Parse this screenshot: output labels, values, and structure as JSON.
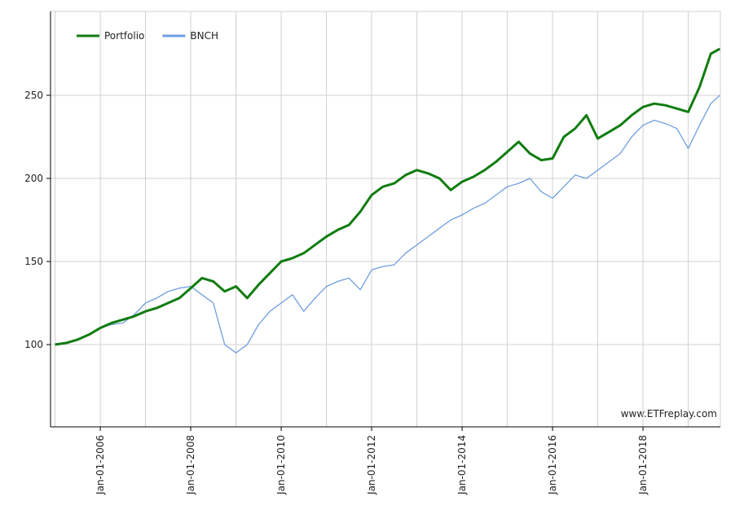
{
  "chart_data": {
    "type": "line",
    "x": [
      2005,
      2005.25,
      2005.5,
      2005.75,
      2006,
      2006.25,
      2006.5,
      2006.75,
      2007,
      2007.25,
      2007.5,
      2007.75,
      2008,
      2008.25,
      2008.5,
      2008.75,
      2009,
      2009.25,
      2009.5,
      2009.75,
      2010,
      2010.25,
      2010.5,
      2010.75,
      2011,
      2011.25,
      2011.5,
      2011.75,
      2012,
      2012.25,
      2012.5,
      2012.75,
      2013,
      2013.25,
      2013.5,
      2013.75,
      2014,
      2014.25,
      2014.5,
      2014.75,
      2015,
      2015.25,
      2015.5,
      2015.75,
      2016,
      2016.25,
      2016.5,
      2016.75,
      2017,
      2017.25,
      2017.5,
      2017.75,
      2018,
      2018.25,
      2018.5,
      2018.75,
      2019,
      2019.25,
      2019.5,
      2019.7
    ],
    "series": [
      {
        "name": "Portfolio",
        "color": "#107c10",
        "width": 3,
        "values": [
          100,
          101,
          103,
          106,
          110,
          113,
          115,
          117,
          120,
          122,
          125,
          128,
          134,
          140,
          138,
          132,
          135,
          128,
          136,
          143,
          150,
          152,
          155,
          160,
          165,
          169,
          172,
          180,
          190,
          195,
          197,
          202,
          205,
          203,
          200,
          193,
          198,
          201,
          205,
          210,
          216,
          222,
          215,
          211,
          212,
          225,
          230,
          238,
          224,
          228,
          232,
          238,
          243,
          245,
          244,
          242,
          240,
          255,
          275,
          278
        ]
      },
      {
        "name": "BNCH",
        "color": "#6f9ee0",
        "width": 1.3,
        "values": [
          100,
          101,
          103,
          106,
          110,
          112,
          113,
          118,
          125,
          128,
          132,
          134,
          135,
          130,
          125,
          100,
          95,
          100,
          112,
          120,
          125,
          130,
          120,
          128,
          135,
          138,
          140,
          133,
          145,
          147,
          148,
          155,
          160,
          165,
          170,
          175,
          178,
          182,
          185,
          190,
          195,
          197,
          200,
          192,
          188,
          195,
          202,
          200,
          205,
          210,
          215,
          225,
          232,
          235,
          233,
          230,
          218,
          232,
          245,
          250
        ]
      }
    ],
    "xlim": [
      2004.9,
      2019.71
    ],
    "xticks": [
      {
        "value": 2006,
        "label": "Jan-01-2006"
      },
      {
        "value": 2008,
        "label": "Jan-01-2008"
      },
      {
        "value": 2010,
        "label": "Jan-01-2010"
      },
      {
        "value": 2012,
        "label": "Jan-01-2012"
      },
      {
        "value": 2014,
        "label": "Jan-01-2014"
      },
      {
        "value": 2016,
        "label": "Jan-01-2016"
      },
      {
        "value": 2018,
        "label": "Jan-01-2018"
      }
    ],
    "x_minor_ticks": [
      2005,
      2007,
      2009,
      2011,
      2013,
      2015,
      2017,
      2019
    ],
    "ylim": [
      50.5,
      300.5
    ],
    "yticks": [
      100,
      150,
      200,
      250
    ],
    "grid": true,
    "legend": "top-left",
    "watermark": "www.ETFreplay.com"
  }
}
